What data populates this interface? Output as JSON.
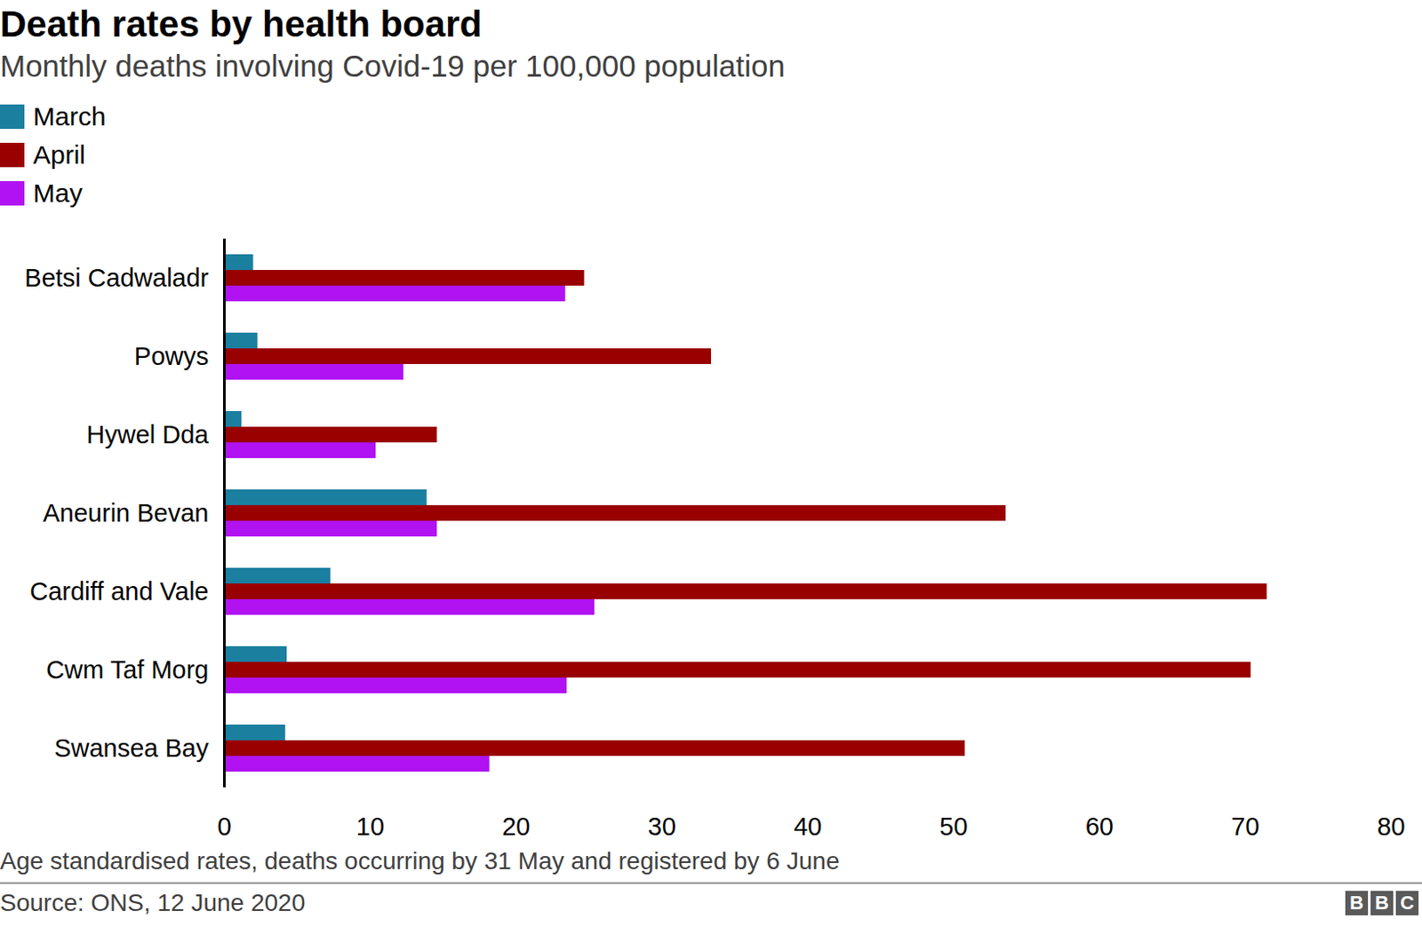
{
  "chart_data": {
    "type": "bar",
    "orientation": "horizontal",
    "title": "Death rates by health board",
    "subtitle": "Monthly deaths involving Covid-19 per 100,000 population",
    "caption": "Age standardised rates, deaths occurring by 31 May and registered by 6 June",
    "source": "Source: ONS, 12 June 2020",
    "logo": "BBC",
    "categories": [
      "Betsi Cadwaladr",
      "Powys",
      "Hywel Dda",
      "Aneurin Bevan",
      "Cardiff and Vale",
      "Cwm Taf Morg",
      "Swansea Bay"
    ],
    "series": [
      {
        "name": "March",
        "color": "#1b7fa0",
        "values": [
          2.0,
          2.3,
          1.2,
          13.9,
          7.3,
          4.3,
          4.2
        ]
      },
      {
        "name": "April",
        "color": "#990000",
        "values": [
          24.7,
          33.4,
          14.6,
          53.6,
          71.5,
          70.4,
          50.8
        ]
      },
      {
        "name": "May",
        "color": "#b012f2",
        "values": [
          23.4,
          12.3,
          10.4,
          14.6,
          25.4,
          23.5,
          18.2
        ]
      }
    ],
    "xlim": [
      0,
      80
    ],
    "xticks": [
      0,
      10,
      20,
      30,
      40,
      50,
      60,
      70,
      80
    ],
    "grid": false,
    "legend": "top-left"
  }
}
